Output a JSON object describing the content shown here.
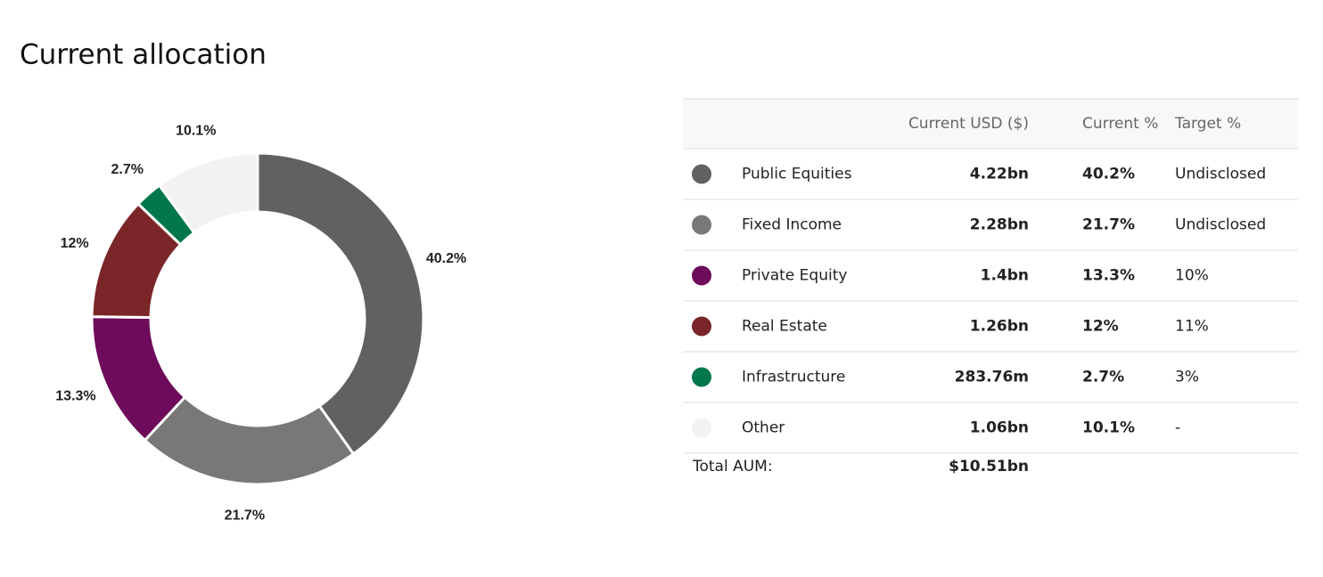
{
  "title": "Current allocation",
  "chart_data": {
    "type": "pie",
    "donut": true,
    "categories": [
      "Public Equities",
      "Fixed Income",
      "Private Equity",
      "Real Estate",
      "Infrastructure",
      "Other"
    ],
    "values": [
      40.2,
      21.7,
      13.3,
      12,
      2.7,
      10.1
    ],
    "value_labels": [
      "40.2%",
      "21.7%",
      "13.3%",
      "12%",
      "2.7%",
      "10.1%"
    ],
    "colors": [
      "#616161",
      "#787878",
      "#6e0b5b",
      "#7a2628",
      "#01774a",
      "#f2f2f2"
    ]
  },
  "table": {
    "header": [
      "Current USD ($)",
      "Current %",
      "Target %"
    ],
    "usd": [
      "4.22bn",
      "2.28bn",
      "1.4bn",
      "1.26bn",
      "283.76m",
      "1.06bn"
    ],
    "target": [
      "Undisclosed",
      "Undisclosed",
      "10%",
      "11%",
      "3%",
      "-"
    ],
    "linked": [
      false,
      false,
      true,
      true,
      true,
      false
    ],
    "total_label": "Total AUM:",
    "total_value": "$10.51bn"
  }
}
